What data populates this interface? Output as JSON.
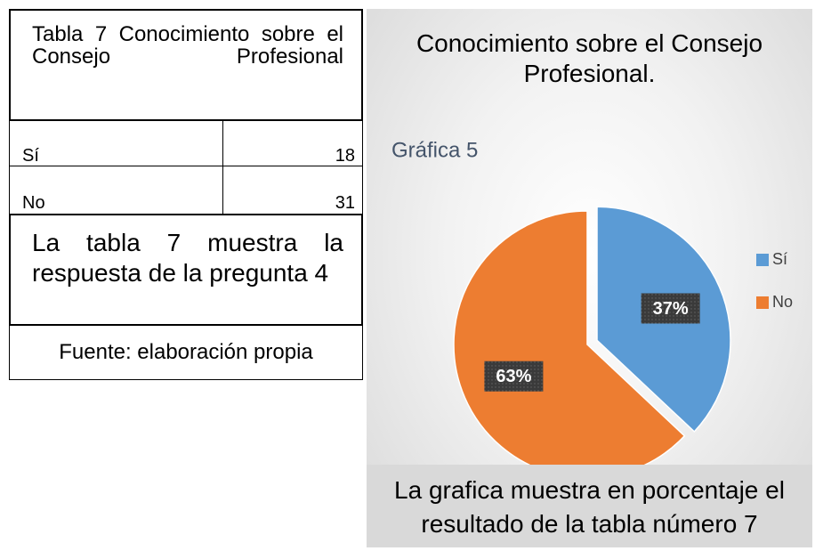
{
  "table": {
    "title": "Tabla 7 Conocimiento sobre el Consejo Profesional",
    "rows": [
      [
        "Sí",
        "18"
      ],
      [
        "No",
        "31"
      ]
    ],
    "description": "La tabla 7 muestra la respuesta de la pregunta 4",
    "source": "Fuente: elaboración propia"
  },
  "chart_data": {
    "type": "pie",
    "title": "Conocimiento sobre el Consejo Profesional.",
    "subtitle": "Gráfica 5",
    "categories": [
      "Sí",
      "No"
    ],
    "values": [
      37,
      63
    ],
    "value_labels": [
      "37%",
      "63%"
    ],
    "colors": [
      "#5b9bd5",
      "#ed7d31"
    ],
    "legend": "right",
    "caption": "La grafica muestra en porcentaje el resultado de la tabla número 7"
  }
}
